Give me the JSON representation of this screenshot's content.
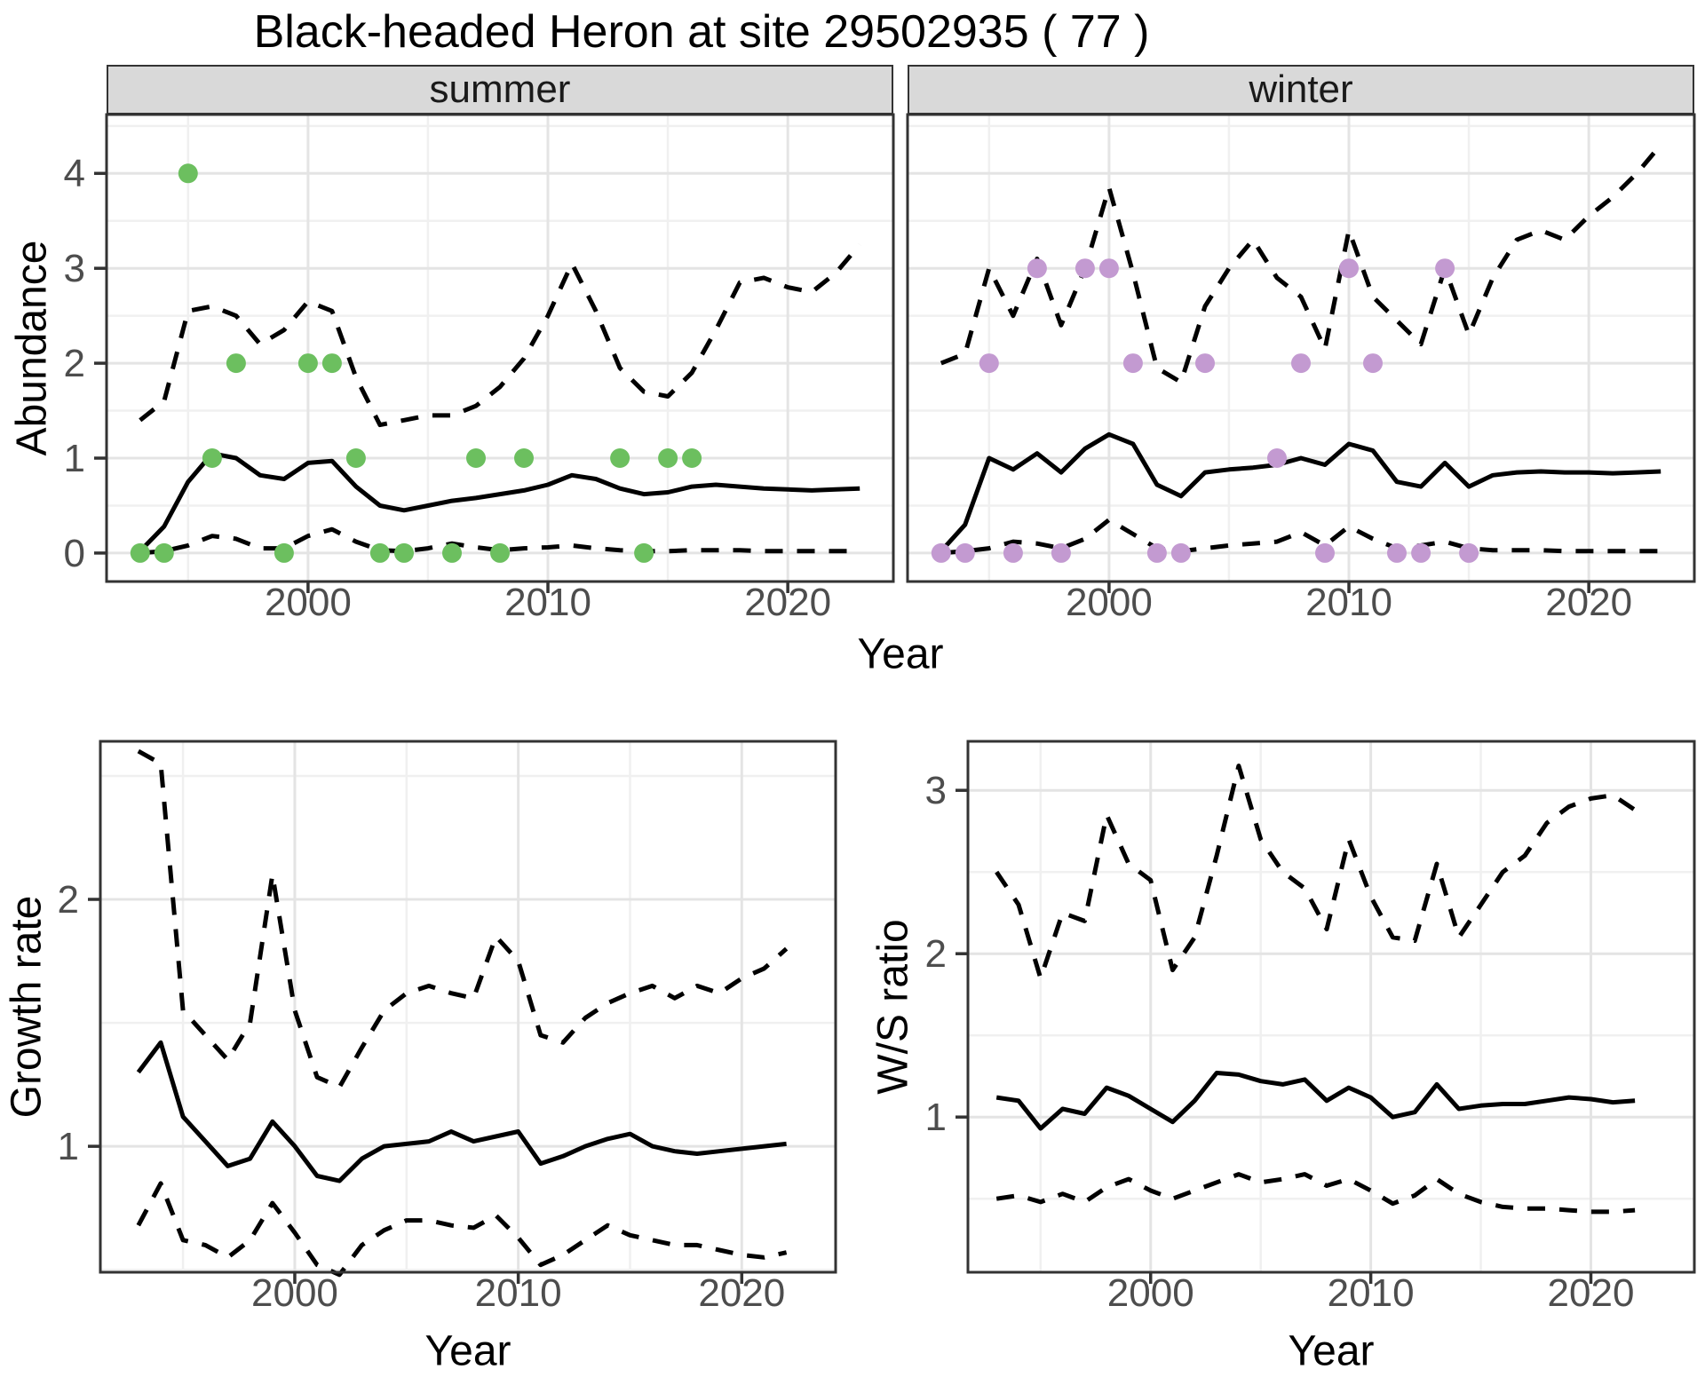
{
  "title": "Black-headed Heron at site 29502935 ( 77 )",
  "facets": [
    "summer",
    "winter"
  ],
  "axes": {
    "x_top": "Year",
    "x_bottom_left": "Year",
    "x_bottom_right": "Year",
    "y_abundance": "Abundance",
    "y_growth": "Growth rate",
    "y_ws": "W/S ratio"
  },
  "colors": {
    "summer_points": "#6cbf5f",
    "winter_points": "#c39ad1",
    "median_line": "#000000",
    "ci_line": "#000000",
    "grid_major": "#e4e4e4",
    "grid_minor": "#f0f0f0",
    "panel_border": "#333333",
    "strip_bg": "#d9d9d9",
    "axis_text": "#4d4d4d"
  },
  "chart_data": [
    {
      "id": "abundance_summer",
      "type": "line",
      "title": "summer",
      "xlabel": "Year",
      "ylabel": "Abundance",
      "legend": false,
      "grid": true,
      "xlim": [
        1991.6,
        2024.4
      ],
      "ylim": [
        -0.3,
        4.62
      ],
      "x_ticks": [
        2000,
        2010,
        2020
      ],
      "y_ticks": [
        0,
        1,
        2,
        3,
        4
      ],
      "x": [
        1993,
        1994,
        1995,
        1996,
        1997,
        1998,
        1999,
        2000,
        2001,
        2002,
        2003,
        2004,
        2005,
        2006,
        2007,
        2008,
        2009,
        2010,
        2011,
        2012,
        2013,
        2014,
        2015,
        2016,
        2017,
        2018,
        2019,
        2020,
        2021,
        2022,
        2023
      ],
      "series": [
        {
          "name": "median_fit",
          "style": "solid",
          "values": [
            0.02,
            0.28,
            0.75,
            1.05,
            1.0,
            0.82,
            0.78,
            0.95,
            0.97,
            0.7,
            0.5,
            0.45,
            0.5,
            0.55,
            0.58,
            0.62,
            0.66,
            0.72,
            0.82,
            0.78,
            0.68,
            0.62,
            0.64,
            0.7,
            0.72,
            0.7,
            0.68,
            0.67,
            0.66,
            0.67,
            0.68
          ]
        },
        {
          "name": "ci_upper_97_5",
          "style": "dashed",
          "values": [
            1.4,
            1.6,
            2.55,
            2.6,
            2.5,
            2.2,
            2.35,
            2.65,
            2.55,
            1.85,
            1.35,
            1.4,
            1.45,
            1.45,
            1.55,
            1.75,
            2.05,
            2.5,
            3.05,
            2.55,
            1.95,
            1.7,
            1.65,
            1.9,
            2.35,
            2.85,
            2.9,
            2.8,
            2.75,
            2.95,
            3.25
          ]
        },
        {
          "name": "ci_lower_2_5",
          "style": "dashed",
          "values": [
            0.0,
            0.02,
            0.08,
            0.18,
            0.15,
            0.05,
            0.05,
            0.18,
            0.25,
            0.12,
            0.03,
            0.02,
            0.05,
            0.1,
            0.06,
            0.03,
            0.05,
            0.06,
            0.08,
            0.05,
            0.03,
            0.02,
            0.02,
            0.03,
            0.03,
            0.03,
            0.02,
            0.02,
            0.02,
            0.02,
            0.02
          ]
        }
      ],
      "points": {
        "name": "observed_counts_summer",
        "color_key": "summer_points",
        "x": [
          1993,
          1994,
          1995,
          1996,
          1997,
          1999,
          2000,
          2001,
          2002,
          2003,
          2004,
          2006,
          2007,
          2008,
          2009,
          2013,
          2014,
          2015,
          2016
        ],
        "y": [
          0,
          0,
          4,
          1,
          2,
          0,
          2,
          2,
          1,
          0,
          0,
          0,
          1,
          0,
          1,
          1,
          0,
          1,
          1
        ]
      }
    },
    {
      "id": "abundance_winter",
      "type": "line",
      "title": "winter",
      "xlabel": "Year",
      "ylabel": "Abundance",
      "legend": false,
      "grid": true,
      "xlim": [
        1991.6,
        2024.4
      ],
      "ylim": [
        -0.3,
        4.62
      ],
      "x_ticks": [
        2000,
        2010,
        2020
      ],
      "y_ticks": [
        0,
        1,
        2,
        3,
        4
      ],
      "x": [
        1993,
        1994,
        1995,
        1996,
        1997,
        1998,
        1999,
        2000,
        2001,
        2002,
        2003,
        2004,
        2005,
        2006,
        2007,
        2008,
        2009,
        2010,
        2011,
        2012,
        2013,
        2014,
        2015,
        2016,
        2017,
        2018,
        2019,
        2020,
        2021,
        2022,
        2023
      ],
      "series": [
        {
          "name": "median_fit",
          "style": "solid",
          "values": [
            0.02,
            0.3,
            1.0,
            0.88,
            1.05,
            0.85,
            1.1,
            1.25,
            1.15,
            0.72,
            0.6,
            0.85,
            0.88,
            0.9,
            0.93,
            1.0,
            0.93,
            1.15,
            1.08,
            0.75,
            0.7,
            0.95,
            0.7,
            0.82,
            0.85,
            0.86,
            0.85,
            0.85,
            0.84,
            0.85,
            0.86
          ]
        },
        {
          "name": "ci_upper_97_5",
          "style": "dashed",
          "values": [
            2.0,
            2.1,
            3.0,
            2.5,
            3.1,
            2.4,
            3.0,
            3.85,
            2.95,
            1.95,
            1.8,
            2.6,
            3.0,
            3.3,
            2.9,
            2.7,
            2.15,
            3.4,
            2.7,
            2.45,
            2.2,
            3.0,
            2.3,
            2.9,
            3.3,
            3.4,
            3.3,
            3.55,
            3.75,
            4.0,
            4.3
          ]
        },
        {
          "name": "ci_lower_2_5",
          "style": "dashed",
          "values": [
            0.0,
            0.02,
            0.05,
            0.12,
            0.1,
            0.05,
            0.15,
            0.35,
            0.2,
            0.05,
            0.02,
            0.05,
            0.08,
            0.1,
            0.12,
            0.22,
            0.08,
            0.28,
            0.15,
            0.05,
            0.08,
            0.12,
            0.05,
            0.03,
            0.03,
            0.03,
            0.02,
            0.02,
            0.02,
            0.02,
            0.02
          ]
        }
      ],
      "points": {
        "name": "observed_counts_winter",
        "color_key": "winter_points",
        "x": [
          1993,
          1994,
          1995,
          1996,
          1997,
          1998,
          1999,
          2000,
          2001,
          2002,
          2003,
          2004,
          2007,
          2008,
          2009,
          2010,
          2011,
          2012,
          2013,
          2014,
          2015
        ],
        "y": [
          0,
          0,
          2,
          0,
          3,
          0,
          3,
          3,
          2,
          0,
          0,
          2,
          1,
          2,
          0,
          3,
          2,
          0,
          0,
          3,
          0
        ]
      }
    },
    {
      "id": "growth_rate",
      "type": "line",
      "title": "Growth rate",
      "xlabel": "Year",
      "ylabel": "Growth rate",
      "legend": false,
      "grid": true,
      "xlim": [
        1991.3,
        2024.2
      ],
      "ylim": [
        0.49,
        2.64
      ],
      "x_ticks": [
        2000,
        2010,
        2020
      ],
      "y_ticks": [
        1,
        2
      ],
      "x": [
        1993,
        1994,
        1995,
        1996,
        1997,
        1998,
        1999,
        2000,
        2001,
        2002,
        2003,
        2004,
        2005,
        2006,
        2007,
        2008,
        2009,
        2010,
        2011,
        2012,
        2013,
        2014,
        2015,
        2016,
        2017,
        2018,
        2019,
        2020,
        2021,
        2022
      ],
      "series": [
        {
          "name": "median_fit",
          "style": "solid",
          "values": [
            1.3,
            1.42,
            1.12,
            1.02,
            0.92,
            0.95,
            1.1,
            1.0,
            0.88,
            0.86,
            0.95,
            1.0,
            1.01,
            1.02,
            1.06,
            1.02,
            1.04,
            1.06,
            0.93,
            0.96,
            1.0,
            1.03,
            1.05,
            1.0,
            0.98,
            0.97,
            0.98,
            0.99,
            1.0,
            1.01
          ]
        },
        {
          "name": "ci_upper_97_5",
          "style": "dashed",
          "values": [
            2.6,
            2.55,
            1.55,
            1.45,
            1.35,
            1.5,
            2.1,
            1.55,
            1.28,
            1.24,
            1.4,
            1.55,
            1.62,
            1.65,
            1.62,
            1.6,
            1.85,
            1.75,
            1.45,
            1.42,
            1.52,
            1.58,
            1.62,
            1.65,
            1.6,
            1.65,
            1.62,
            1.68,
            1.72,
            1.8
          ]
        },
        {
          "name": "ci_lower_2_5",
          "style": "dashed",
          "values": [
            0.68,
            0.85,
            0.62,
            0.6,
            0.55,
            0.62,
            0.77,
            0.65,
            0.52,
            0.48,
            0.6,
            0.66,
            0.7,
            0.7,
            0.68,
            0.67,
            0.72,
            0.63,
            0.52,
            0.56,
            0.62,
            0.68,
            0.64,
            0.62,
            0.6,
            0.6,
            0.58,
            0.56,
            0.55,
            0.57
          ]
        }
      ],
      "points": null
    },
    {
      "id": "ws_ratio",
      "type": "line",
      "title": "W/S ratio",
      "xlabel": "Year",
      "ylabel": "W/S ratio",
      "legend": false,
      "grid": true,
      "xlim": [
        1991.7,
        2024.7
      ],
      "ylim": [
        0.05,
        3.3
      ],
      "x_ticks": [
        2000,
        2010,
        2020
      ],
      "y_ticks": [
        1,
        2,
        3
      ],
      "x": [
        1993,
        1994,
        1995,
        1996,
        1997,
        1998,
        1999,
        2000,
        2001,
        2002,
        2003,
        2004,
        2005,
        2006,
        2007,
        2008,
        2009,
        2010,
        2011,
        2012,
        2013,
        2014,
        2015,
        2016,
        2017,
        2018,
        2019,
        2020,
        2021,
        2022
      ],
      "series": [
        {
          "name": "median_fit",
          "style": "solid",
          "values": [
            1.12,
            1.1,
            0.93,
            1.05,
            1.02,
            1.18,
            1.13,
            1.05,
            0.97,
            1.1,
            1.27,
            1.26,
            1.22,
            1.2,
            1.23,
            1.1,
            1.18,
            1.12,
            1.0,
            1.03,
            1.2,
            1.05,
            1.07,
            1.08,
            1.08,
            1.1,
            1.12,
            1.11,
            1.09,
            1.1
          ]
        },
        {
          "name": "ci_upper_97_5",
          "style": "dashed",
          "values": [
            2.5,
            2.3,
            1.85,
            2.25,
            2.2,
            2.85,
            2.55,
            2.45,
            1.9,
            2.1,
            2.6,
            3.15,
            2.7,
            2.5,
            2.4,
            2.15,
            2.7,
            2.35,
            2.1,
            2.08,
            2.55,
            2.1,
            2.3,
            2.5,
            2.6,
            2.8,
            2.9,
            2.95,
            2.97,
            2.88
          ]
        },
        {
          "name": "ci_lower_2_5",
          "style": "dashed",
          "values": [
            0.5,
            0.52,
            0.48,
            0.53,
            0.48,
            0.57,
            0.62,
            0.55,
            0.5,
            0.55,
            0.6,
            0.65,
            0.6,
            0.62,
            0.65,
            0.58,
            0.62,
            0.55,
            0.47,
            0.52,
            0.62,
            0.53,
            0.48,
            0.45,
            0.44,
            0.44,
            0.43,
            0.42,
            0.42,
            0.43
          ]
        }
      ],
      "points": null
    }
  ]
}
